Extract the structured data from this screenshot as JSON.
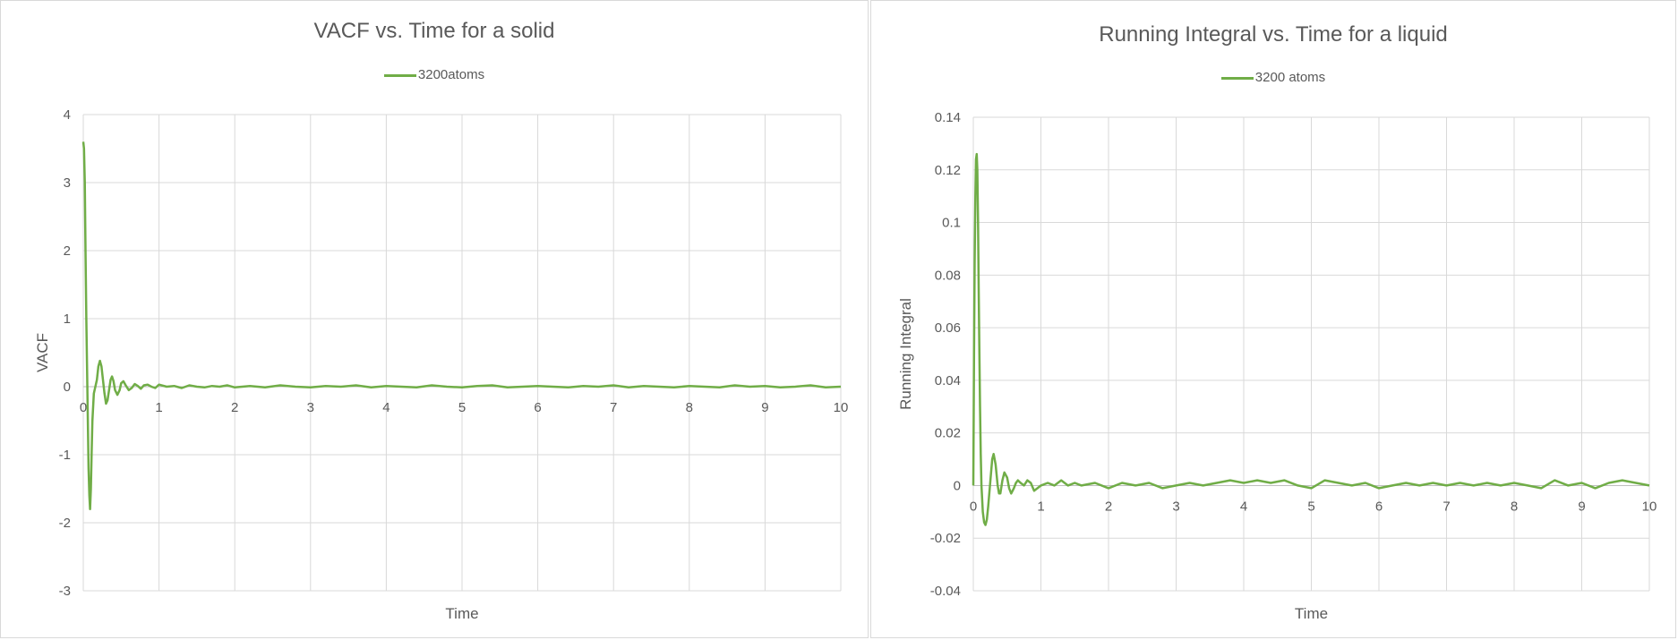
{
  "chart_data": [
    {
      "type": "line",
      "title": "VACF vs. Time for a solid",
      "xlabel": "Time",
      "ylabel": "VACF",
      "xlim": [
        0,
        10
      ],
      "ylim": [
        -3,
        4
      ],
      "x_ticks": [
        "0",
        "1",
        "2",
        "3",
        "4",
        "5",
        "6",
        "7",
        "8",
        "9",
        "10"
      ],
      "y_ticks": [
        "4",
        "3",
        "2",
        "1",
        "0",
        "-1",
        "-2",
        "-3"
      ],
      "grid": true,
      "legend_position": "top",
      "series": [
        {
          "name": "3200atoms",
          "color": "#70AD47",
          "x": [
            0,
            0.01,
            0.02,
            0.03,
            0.04,
            0.05,
            0.06,
            0.07,
            0.08,
            0.09,
            0.1,
            0.11,
            0.12,
            0.14,
            0.16,
            0.18,
            0.2,
            0.22,
            0.24,
            0.26,
            0.28,
            0.3,
            0.32,
            0.34,
            0.36,
            0.38,
            0.4,
            0.42,
            0.45,
            0.48,
            0.5,
            0.53,
            0.56,
            0.6,
            0.64,
            0.68,
            0.72,
            0.76,
            0.8,
            0.85,
            0.9,
            0.95,
            1.0,
            1.1,
            1.2,
            1.3,
            1.4,
            1.5,
            1.6,
            1.7,
            1.8,
            1.9,
            2.0,
            2.2,
            2.4,
            2.6,
            2.8,
            3.0,
            3.2,
            3.4,
            3.6,
            3.8,
            4.0,
            4.2,
            4.4,
            4.6,
            4.8,
            5.0,
            5.2,
            5.4,
            5.6,
            5.8,
            6.0,
            6.2,
            6.4,
            6.6,
            6.8,
            7.0,
            7.2,
            7.4,
            7.6,
            7.8,
            8.0,
            8.2,
            8.4,
            8.6,
            8.8,
            9.0,
            9.2,
            9.4,
            9.6,
            9.8,
            10.0
          ],
          "y": [
            3.6,
            3.5,
            3.0,
            2.0,
            1.0,
            0.3,
            -0.5,
            -1.2,
            -1.6,
            -1.8,
            -1.5,
            -1.0,
            -0.5,
            -0.1,
            0.0,
            0.1,
            0.3,
            0.38,
            0.3,
            0.1,
            -0.1,
            -0.25,
            -0.2,
            -0.05,
            0.1,
            0.15,
            0.08,
            -0.05,
            -0.12,
            -0.05,
            0.05,
            0.08,
            0.02,
            -0.05,
            -0.02,
            0.04,
            0.01,
            -0.03,
            0.02,
            0.03,
            0.0,
            -0.02,
            0.03,
            0.0,
            0.01,
            -0.02,
            0.02,
            0.0,
            -0.01,
            0.01,
            0.0,
            0.02,
            -0.01,
            0.01,
            -0.01,
            0.02,
            0.0,
            -0.01,
            0.01,
            0.0,
            0.02,
            -0.01,
            0.01,
            0.0,
            -0.01,
            0.02,
            0.0,
            -0.01,
            0.01,
            0.02,
            -0.01,
            0.0,
            0.01,
            0.0,
            -0.01,
            0.01,
            0.0,
            0.02,
            -0.01,
            0.01,
            0.0,
            -0.01,
            0.01,
            0.0,
            -0.01,
            0.02,
            0.0,
            0.01,
            -0.01,
            0.0,
            0.02,
            -0.01,
            0.0
          ]
        }
      ]
    },
    {
      "type": "line",
      "title": "Running Integral vs. Time for a liquid",
      "xlabel": "Time",
      "ylabel": "Running Integral",
      "xlim": [
        0,
        10
      ],
      "ylim": [
        -0.04,
        0.14
      ],
      "x_ticks": [
        "0",
        "1",
        "2",
        "3",
        "4",
        "5",
        "6",
        "7",
        "8",
        "9",
        "10"
      ],
      "y_ticks": [
        "0.14",
        "0.12",
        "0.1",
        "0.08",
        "0.06",
        "0.04",
        "0.02",
        "0",
        "-0.02",
        "-0.04"
      ],
      "grid": true,
      "legend_position": "top",
      "series": [
        {
          "name": "3200 atoms",
          "color": "#70AD47",
          "x": [
            0,
            0.01,
            0.02,
            0.03,
            0.04,
            0.05,
            0.06,
            0.07,
            0.08,
            0.09,
            0.1,
            0.11,
            0.12,
            0.14,
            0.16,
            0.18,
            0.2,
            0.22,
            0.24,
            0.26,
            0.28,
            0.3,
            0.33,
            0.36,
            0.38,
            0.4,
            0.43,
            0.46,
            0.5,
            0.53,
            0.56,
            0.6,
            0.63,
            0.66,
            0.7,
            0.75,
            0.8,
            0.85,
            0.9,
            0.95,
            1.0,
            1.1,
            1.2,
            1.3,
            1.4,
            1.5,
            1.6,
            1.8,
            2.0,
            2.2,
            2.4,
            2.6,
            2.8,
            3.0,
            3.2,
            3.4,
            3.6,
            3.8,
            4.0,
            4.2,
            4.4,
            4.6,
            4.8,
            5.0,
            5.2,
            5.4,
            5.6,
            5.8,
            6.0,
            6.2,
            6.4,
            6.6,
            6.8,
            7.0,
            7.2,
            7.4,
            7.6,
            7.8,
            8.0,
            8.2,
            8.4,
            8.6,
            8.8,
            9.0,
            9.2,
            9.4,
            9.6,
            9.8,
            10.0
          ],
          "y": [
            0,
            0.05,
            0.085,
            0.11,
            0.124,
            0.126,
            0.12,
            0.1,
            0.075,
            0.05,
            0.03,
            0.012,
            0.0,
            -0.01,
            -0.014,
            -0.015,
            -0.013,
            -0.008,
            -0.002,
            0.004,
            0.01,
            0.012,
            0.008,
            0.0,
            -0.003,
            -0.003,
            0.002,
            0.005,
            0.003,
            -0.001,
            -0.003,
            -0.001,
            0.001,
            0.002,
            0.001,
            0.0,
            0.002,
            0.001,
            -0.002,
            -0.001,
            0.0,
            0.001,
            0.0,
            0.002,
            0.0,
            0.001,
            0.0,
            0.001,
            -0.001,
            0.001,
            0.0,
            0.001,
            -0.001,
            0.0,
            0.001,
            0.0,
            0.001,
            0.002,
            0.001,
            0.002,
            0.001,
            0.002,
            0.0,
            -0.001,
            0.002,
            0.001,
            0.0,
            0.001,
            -0.001,
            0.0,
            0.001,
            0.0,
            0.001,
            0.0,
            0.001,
            0.0,
            0.001,
            0.0,
            0.001,
            0.0,
            -0.001,
            0.002,
            0.0,
            0.001,
            -0.001,
            0.001,
            0.002,
            0.001,
            0.0
          ]
        }
      ]
    }
  ]
}
